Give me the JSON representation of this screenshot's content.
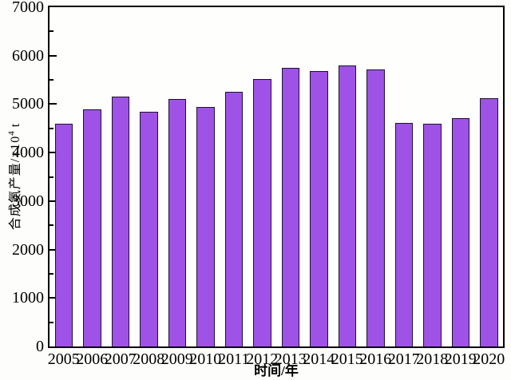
{
  "figure": {
    "background": "#fdfdfb",
    "axis_color": "#000000"
  },
  "chart": {
    "y_axis": {
      "title_prefix": "合成氨产量/×10",
      "title_sup": "4",
      "title_suffix": " t",
      "min": 0,
      "max": 7000,
      "major_step": 1000,
      "minor_step": 500
    },
    "x_axis": {
      "title": "时间/年"
    }
  },
  "chart_data": {
    "type": "bar",
    "title": "",
    "categories": [
      "2005",
      "2006",
      "2007",
      "2008",
      "2009",
      "2010",
      "2011",
      "2012",
      "2013",
      "2014",
      "2015",
      "2016",
      "2017",
      "2018",
      "2019",
      "2020"
    ],
    "values": [
      4590,
      4890,
      5160,
      4840,
      5110,
      4940,
      5260,
      5510,
      5750,
      5690,
      5800,
      5720,
      4610,
      4590,
      4710,
      5130
    ],
    "xlabel": "时间/年",
    "ylabel": "合成氨产量/×10⁴ t",
    "ylim": [
      0,
      7000
    ],
    "y_major_ticks": [
      0,
      1000,
      2000,
      3000,
      4000,
      5000,
      6000,
      7000
    ],
    "y_minor_tick_step": 500,
    "grid": false,
    "legend": false,
    "bar_color": "#9e52e6",
    "bar_border_color": "#1c1231"
  }
}
